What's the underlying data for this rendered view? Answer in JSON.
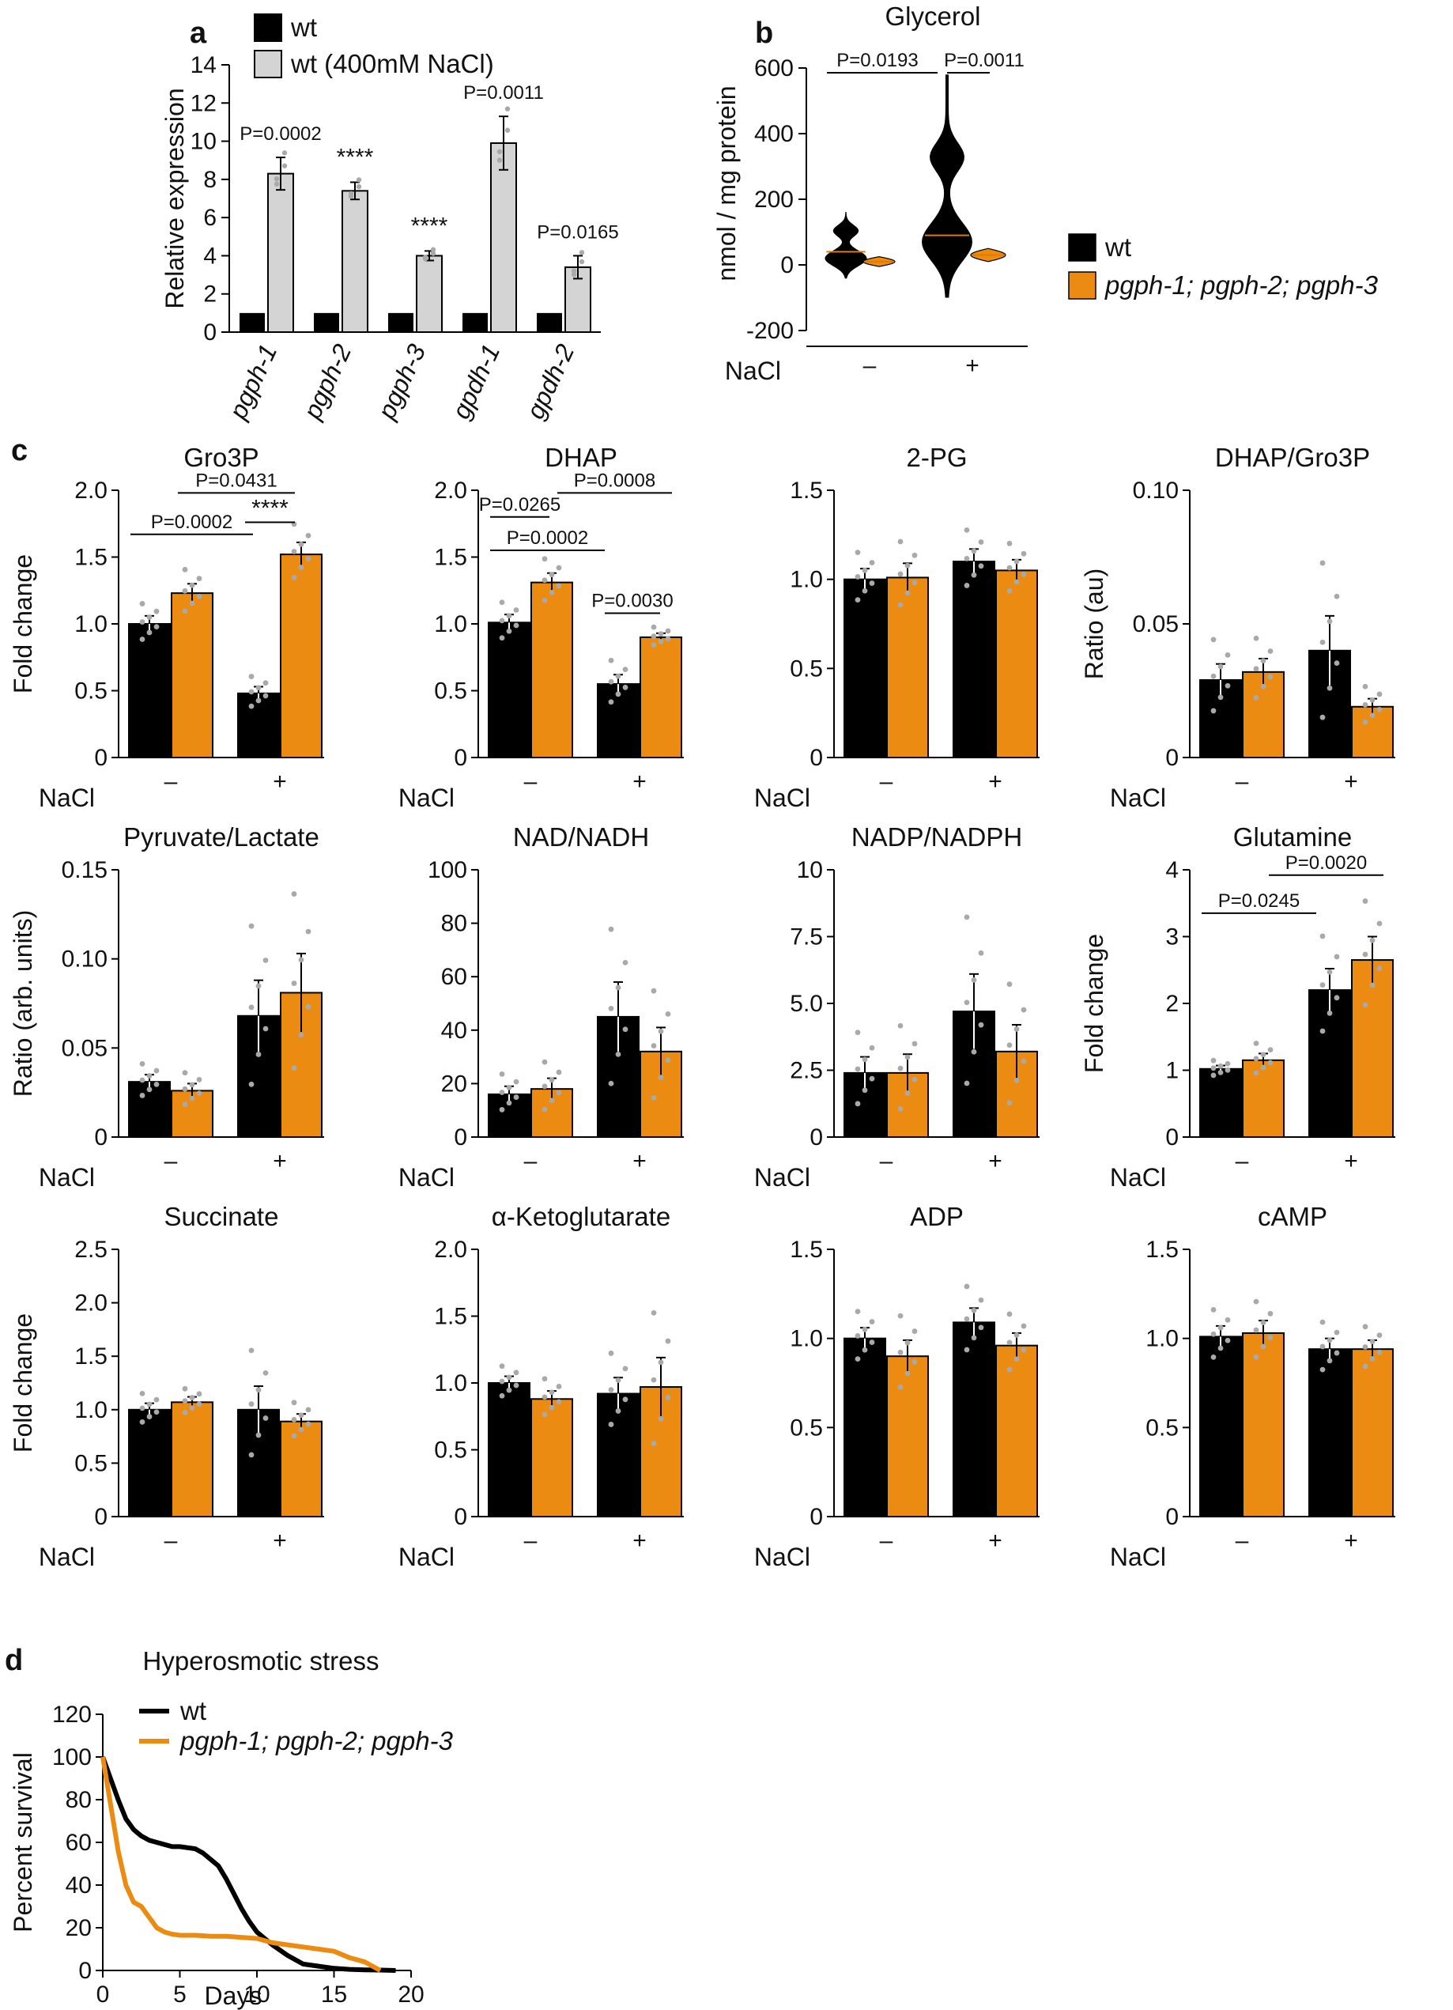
{
  "figure": {
    "panel_labels": [
      "a",
      "b",
      "c",
      "d"
    ],
    "colors": {
      "wt": "#000000",
      "mutant": "#ec8b12",
      "wt_salt": "#d4d4d4",
      "points": "#a9a9a9",
      "median": "#e07b00"
    },
    "nacl_label": "NaCl",
    "nacl_levels": [
      "–",
      "+"
    ],
    "legend_b": [
      {
        "label": "wt",
        "italic": false,
        "color": "#000000"
      },
      {
        "label": "pgph-1; pgph-2; pgph-3",
        "italic": true,
        "color": "#ec8b12"
      }
    ]
  },
  "chart_data": [
    {
      "id": "a",
      "type": "bar",
      "title": "",
      "ylabel": "Relative expression",
      "ylim": [
        0,
        14
      ],
      "yticks": [
        0,
        2,
        4,
        6,
        8,
        10,
        12,
        14
      ],
      "categories": [
        "pgph-1",
        "pgph-2",
        "pgph-3",
        "gpdh-1",
        "gpdh-2"
      ],
      "series": [
        {
          "name": "wt",
          "color": "#000000",
          "values": [
            1,
            1,
            1,
            1,
            1
          ]
        },
        {
          "name": "wt (400mM NaCl)",
          "color": "#d4d4d4",
          "values": [
            8.3,
            7.4,
            4.0,
            9.9,
            3.4
          ],
          "errors": [
            0.85,
            0.45,
            0.25,
            1.4,
            0.6
          ]
        }
      ],
      "annotations": [
        "P=0.0002",
        "****",
        "****",
        "P=0.0011",
        "P=0.0165"
      ]
    },
    {
      "id": "b",
      "type": "violin",
      "title": "Glycerol",
      "ylabel": "nmol / mg protein",
      "ylim": [
        -200,
        600
      ],
      "yticks": [
        -200,
        0,
        200,
        400,
        600
      ],
      "groups": [
        "–",
        "+"
      ],
      "series": [
        {
          "name": "wt",
          "color": "#000000",
          "medians": [
            40,
            90
          ],
          "ranges": [
            [
              -40,
              160
            ],
            [
              -100,
              580
            ]
          ]
        },
        {
          "name": "pgph-1; pgph-2; pgph-3",
          "color": "#ec8b12",
          "medians": [
            10,
            30
          ],
          "ranges": [
            [
              -5,
              25
            ],
            [
              10,
              50
            ]
          ]
        }
      ],
      "comparisons": [
        "P=0.0193",
        "P=0.0011"
      ]
    },
    {
      "id": "c-gro3p",
      "type": "bar",
      "title": "Gro3P",
      "ylabel": "Fold change",
      "ylim": [
        0,
        2.0
      ],
      "yticks": [
        "0",
        "0.5",
        "1.0",
        "1.5",
        "2.0"
      ],
      "groups": [
        "–",
        "+"
      ],
      "series": [
        {
          "name": "wt",
          "values": [
            1.0,
            0.48
          ],
          "errors": [
            0.06,
            0.05
          ]
        },
        {
          "name": "pgph-1; pgph-2; pgph-3",
          "values": [
            1.23,
            1.52
          ],
          "errors": [
            0.07,
            0.09
          ]
        }
      ],
      "comparisons": [
        "P=0.0002",
        "P=0.0431",
        "****"
      ]
    },
    {
      "id": "c-dhap",
      "type": "bar",
      "title": "DHAP",
      "ylabel": "",
      "ylim": [
        0,
        2.0
      ],
      "yticks": [
        "0",
        "0.5",
        "1.0",
        "1.5",
        "2.0"
      ],
      "groups": [
        "–",
        "+"
      ],
      "series": [
        {
          "name": "wt",
          "values": [
            1.01,
            0.55
          ],
          "errors": [
            0.06,
            0.07
          ]
        },
        {
          "name": "pgph-1; pgph-2; pgph-3",
          "values": [
            1.31,
            0.9
          ],
          "errors": [
            0.07,
            0.03
          ]
        }
      ],
      "comparisons": [
        "P=0.0265",
        "P=0.0008",
        "P=0.0002",
        "P=0.0030"
      ]
    },
    {
      "id": "c-2pg",
      "type": "bar",
      "title": "2-PG",
      "ylabel": "",
      "ylim": [
        0,
        1.5
      ],
      "yticks": [
        "0",
        "0.5",
        "1.0",
        "1.5"
      ],
      "groups": [
        "–",
        "+"
      ],
      "series": [
        {
          "name": "wt",
          "values": [
            1.0,
            1.1
          ],
          "errors": [
            0.06,
            0.07
          ]
        },
        {
          "name": "pgph-1; pgph-2; pgph-3",
          "values": [
            1.01,
            1.05
          ],
          "errors": [
            0.08,
            0.06
          ]
        }
      ],
      "comparisons": []
    },
    {
      "id": "c-dhap-gro3p",
      "type": "bar",
      "title": "DHAP/Gro3P",
      "ylabel": "Ratio (au)",
      "ylim": [
        0,
        0.1
      ],
      "yticks": [
        "0",
        "0.05",
        "0.10"
      ],
      "groups": [
        "–",
        "+"
      ],
      "series": [
        {
          "name": "wt",
          "values": [
            0.029,
            0.04
          ],
          "errors": [
            0.006,
            0.013
          ]
        },
        {
          "name": "pgph-1; pgph-2; pgph-3",
          "values": [
            0.032,
            0.019
          ],
          "errors": [
            0.005,
            0.003
          ]
        }
      ],
      "comparisons": []
    },
    {
      "id": "c-pyruvate-lactate",
      "type": "bar",
      "title": "Pyruvate/Lactate",
      "ylabel": "Ratio (arb. units)",
      "ylim": [
        0,
        0.15
      ],
      "yticks": [
        "0",
        "0.05",
        "0.10",
        "0.15"
      ],
      "groups": [
        "–",
        "+"
      ],
      "series": [
        {
          "name": "wt",
          "values": [
            0.031,
            0.068
          ],
          "errors": [
            0.004,
            0.02
          ]
        },
        {
          "name": "pgph-1; pgph-2; pgph-3",
          "values": [
            0.026,
            0.081
          ],
          "errors": [
            0.004,
            0.022
          ]
        }
      ],
      "comparisons": []
    },
    {
      "id": "c-nad-nadh",
      "type": "bar",
      "title": "NAD/NADH",
      "ylabel": "",
      "ylim": [
        0,
        100
      ],
      "yticks": [
        "0",
        "20",
        "40",
        "60",
        "80",
        "100"
      ],
      "groups": [
        "–",
        "+"
      ],
      "series": [
        {
          "name": "wt",
          "values": [
            16,
            45
          ],
          "errors": [
            3,
            13
          ]
        },
        {
          "name": "pgph-1; pgph-2; pgph-3",
          "values": [
            18,
            32
          ],
          "errors": [
            4,
            9
          ]
        }
      ],
      "comparisons": []
    },
    {
      "id": "c-nadp-nadph",
      "type": "bar",
      "title": "NADP/NADPH",
      "ylabel": "",
      "ylim": [
        0,
        10
      ],
      "yticks": [
        "0",
        "2.5",
        "5.0",
        "7.5",
        "10"
      ],
      "groups": [
        "–",
        "+"
      ],
      "series": [
        {
          "name": "wt",
          "values": [
            2.4,
            4.7
          ],
          "errors": [
            0.6,
            1.4
          ]
        },
        {
          "name": "pgph-1; pgph-2; pgph-3",
          "values": [
            2.4,
            3.2
          ],
          "errors": [
            0.7,
            1.0
          ]
        }
      ],
      "comparisons": []
    },
    {
      "id": "c-glutamine",
      "type": "bar",
      "title": "Glutamine",
      "ylabel": "Fold change",
      "ylim": [
        0,
        4
      ],
      "yticks": [
        "0",
        "1",
        "2",
        "3",
        "4"
      ],
      "groups": [
        "–",
        "+"
      ],
      "series": [
        {
          "name": "wt",
          "values": [
            1.02,
            2.2
          ],
          "errors": [
            0.05,
            0.32
          ]
        },
        {
          "name": "pgph-1; pgph-2; pgph-3",
          "values": [
            1.15,
            2.65
          ],
          "errors": [
            0.1,
            0.35
          ]
        }
      ],
      "comparisons": [
        "P=0.0245",
        "P=0.0020"
      ]
    },
    {
      "id": "c-succinate",
      "type": "bar",
      "title": "Succinate",
      "ylabel": "Fold change",
      "ylim": [
        0,
        2.5
      ],
      "yticks": [
        "0",
        "0.5",
        "1.0",
        "1.5",
        "2.0",
        "2.5"
      ],
      "groups": [
        "–",
        "+"
      ],
      "series": [
        {
          "name": "wt",
          "values": [
            1.0,
            1.0
          ],
          "errors": [
            0.06,
            0.22
          ]
        },
        {
          "name": "pgph-1; pgph-2; pgph-3",
          "values": [
            1.07,
            0.89
          ],
          "errors": [
            0.05,
            0.07
          ]
        }
      ],
      "comparisons": []
    },
    {
      "id": "c-ketoglutarate",
      "type": "bar",
      "title": "α-Ketoglutarate",
      "ylabel": "",
      "ylim": [
        0,
        2.0
      ],
      "yticks": [
        "0",
        "0.5",
        "1.0",
        "1.5",
        "2.0"
      ],
      "groups": [
        "–",
        "+"
      ],
      "series": [
        {
          "name": "wt",
          "values": [
            1.0,
            0.92
          ],
          "errors": [
            0.05,
            0.12
          ]
        },
        {
          "name": "pgph-1; pgph-2; pgph-3",
          "values": [
            0.88,
            0.97
          ],
          "errors": [
            0.06,
            0.22
          ]
        }
      ],
      "comparisons": []
    },
    {
      "id": "c-adp",
      "type": "bar",
      "title": "ADP",
      "ylabel": "",
      "ylim": [
        0,
        1.5
      ],
      "yticks": [
        "0",
        "0.5",
        "1.0",
        "1.5"
      ],
      "groups": [
        "–",
        "+"
      ],
      "series": [
        {
          "name": "wt",
          "values": [
            1.0,
            1.09
          ],
          "errors": [
            0.06,
            0.08
          ]
        },
        {
          "name": "pgph-1; pgph-2; pgph-3",
          "values": [
            0.9,
            0.96
          ],
          "errors": [
            0.09,
            0.07
          ]
        }
      ],
      "comparisons": []
    },
    {
      "id": "c-camp",
      "type": "bar",
      "title": "cAMP",
      "ylabel": "",
      "ylim": [
        0,
        1.5
      ],
      "yticks": [
        "0",
        "0.5",
        "1.0",
        "1.5"
      ],
      "groups": [
        "–",
        "+"
      ],
      "series": [
        {
          "name": "wt",
          "values": [
            1.01,
            0.94
          ],
          "errors": [
            0.06,
            0.06
          ]
        },
        {
          "name": "pgph-1; pgph-2; pgph-3",
          "values": [
            1.03,
            0.94
          ],
          "errors": [
            0.07,
            0.05
          ]
        }
      ],
      "comparisons": []
    },
    {
      "id": "d",
      "type": "line",
      "title": "Hyperosmotic stress",
      "xlabel": "Days",
      "ylabel": "Percent survival",
      "xlim": [
        0,
        20
      ],
      "ylim": [
        0,
        120
      ],
      "xticks": [
        0,
        5,
        10,
        15,
        20
      ],
      "yticks": [
        0,
        20,
        40,
        60,
        80,
        100,
        120
      ],
      "series": [
        {
          "name": "wt",
          "color": "#000000",
          "x": [
            0,
            0.5,
            1,
            1.5,
            2,
            2.5,
            3,
            3.5,
            4,
            4.5,
            5,
            6,
            6.5,
            7,
            7.5,
            8,
            8.5,
            9,
            9.5,
            10,
            10.5,
            11,
            12,
            13,
            14,
            15,
            16,
            17,
            18,
            19
          ],
          "y": [
            100,
            90,
            80,
            71,
            66,
            63,
            61,
            60,
            59,
            58,
            58,
            57,
            55,
            52,
            49,
            43,
            36,
            29,
            23,
            18,
            15,
            12,
            7,
            3,
            2,
            1,
            0.5,
            0.3,
            0.2,
            0
          ]
        },
        {
          "name": "pgph-1; pgph-2; pgph-3",
          "color": "#ec8b12",
          "x": [
            0,
            0.5,
            1,
            1.5,
            2,
            2.5,
            3,
            3.5,
            4,
            4.5,
            5,
            6,
            7,
            8,
            9,
            10,
            11,
            12,
            13,
            14,
            15,
            16,
            17,
            18
          ],
          "y": [
            100,
            78,
            56,
            40,
            32,
            30,
            25,
            20,
            18,
            17,
            16.5,
            16.5,
            16,
            16,
            15.5,
            15,
            13,
            12,
            11,
            10,
            9,
            6,
            4,
            0
          ]
        }
      ]
    }
  ]
}
